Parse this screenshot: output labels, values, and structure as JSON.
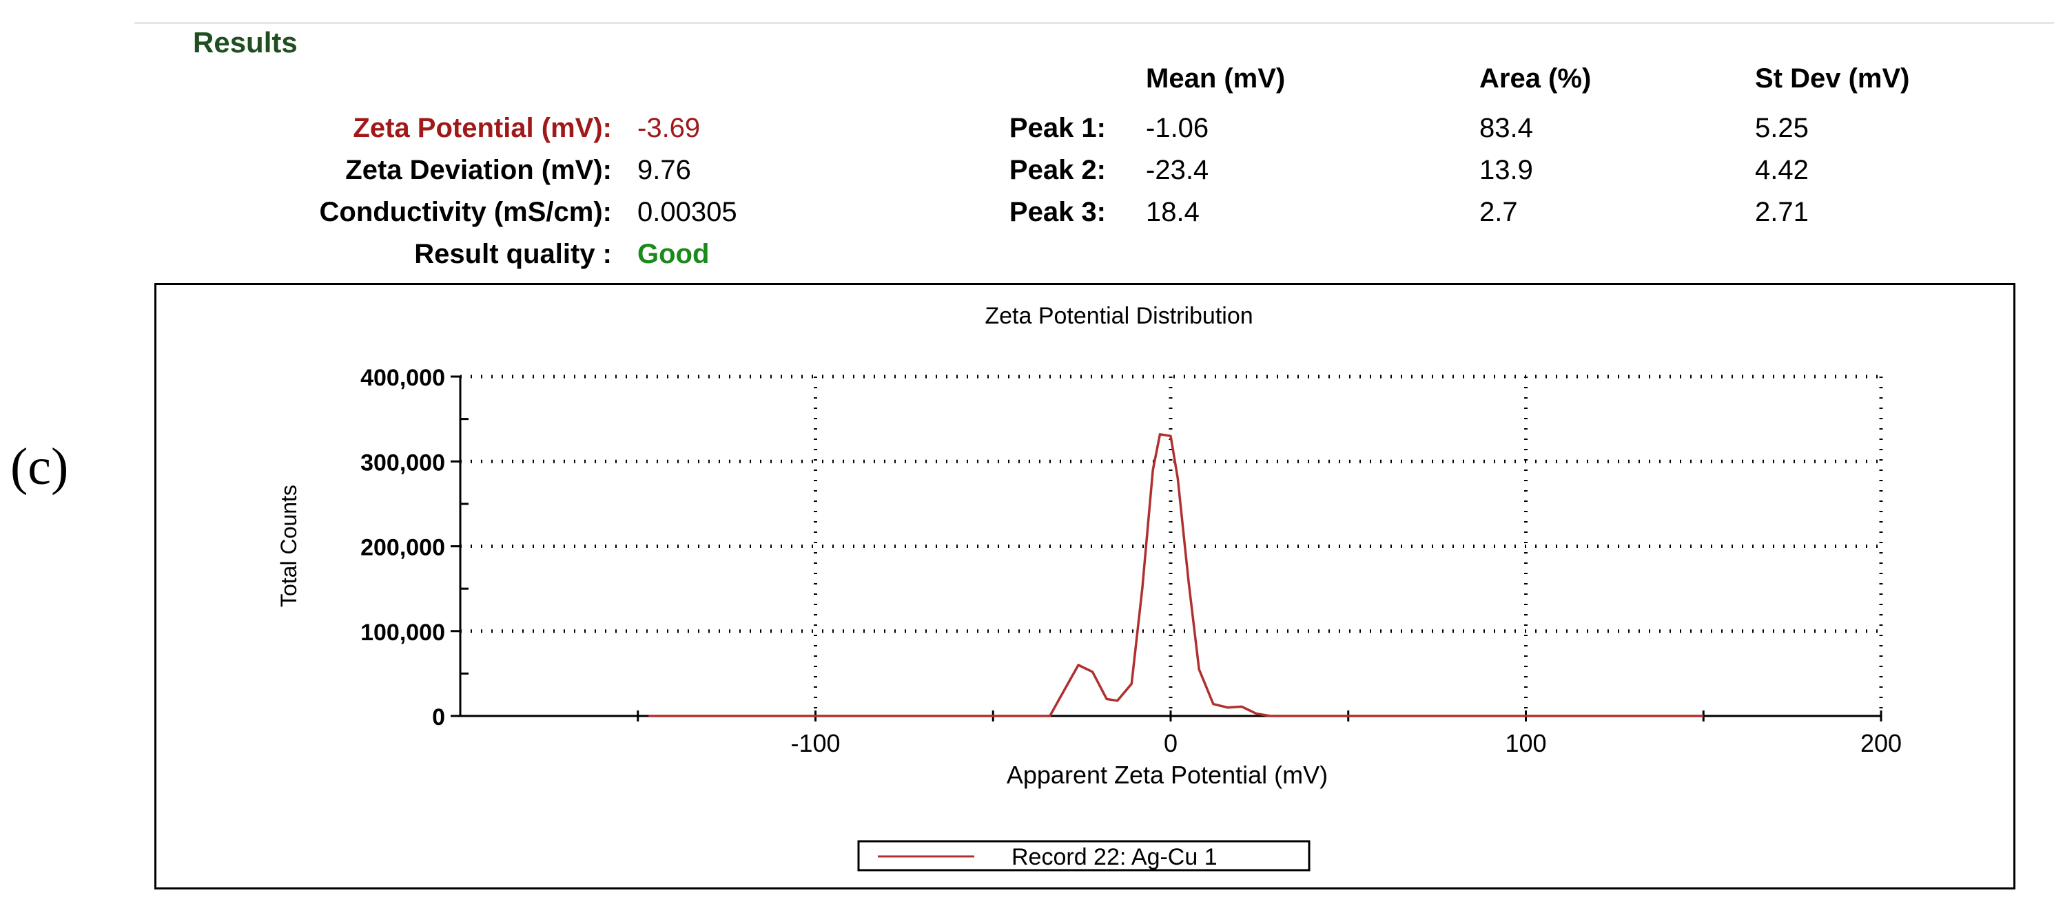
{
  "panel_label": "(c)",
  "results": {
    "title": "Results",
    "summary": [
      {
        "label": "Zeta Potential (mV):",
        "value": "-3.69",
        "color": "#a01818"
      },
      {
        "label": "Zeta Deviation (mV):",
        "value": "9.76",
        "color": "#000000"
      },
      {
        "label": "Conductivity (mS/cm):",
        "value": "0.00305",
        "color": "#000000"
      },
      {
        "label": "Result quality :",
        "value": "Good",
        "color": "#1a8a1a"
      }
    ],
    "peak_headers": [
      "Mean (mV)",
      "Area (%)",
      "St Dev (mV)"
    ],
    "peaks": [
      {
        "label": "Peak 1:",
        "mean": "-1.06",
        "area": "83.4",
        "stdev": "5.25"
      },
      {
        "label": "Peak 2:",
        "mean": "-23.4",
        "area": "13.9",
        "stdev": "4.42"
      },
      {
        "label": "Peak 3:",
        "mean": "18.4",
        "area": "2.7",
        "stdev": "2.71"
      }
    ]
  },
  "chart_data": {
    "type": "line",
    "title": "Zeta Potential Distribution",
    "xlabel": "Apparent Zeta Potential (mV)",
    "ylabel": "Total Counts",
    "xlim": [
      -200,
      200
    ],
    "ylim": [
      0,
      400000
    ],
    "xticks": [
      -100,
      0,
      100,
      200
    ],
    "xtick_labels": [
      "-100",
      "0",
      "100",
      "200"
    ],
    "yticks": [
      0,
      100000,
      200000,
      300000,
      400000
    ],
    "ytick_labels": [
      "0",
      "100,000",
      "200,000",
      "300,000",
      "400,000"
    ],
    "grid": true,
    "legend_position": "bottom-center",
    "series": [
      {
        "name": "Record 22: Ag-Cu 1",
        "color": "#b03030",
        "x": [
          -147,
          -50,
          -34,
          -30,
          -26,
          -22,
          -18,
          -15,
          -11,
          -8,
          -5,
          -3,
          0,
          2,
          5,
          8,
          12,
          16,
          20,
          24,
          28,
          40,
          80,
          150
        ],
        "y": [
          0,
          0,
          0,
          30000,
          60000,
          52000,
          20000,
          18000,
          38000,
          150000,
          290000,
          332000,
          330000,
          280000,
          160000,
          55000,
          14000,
          10000,
          11000,
          3000,
          0,
          0,
          0,
          0
        ]
      }
    ]
  }
}
